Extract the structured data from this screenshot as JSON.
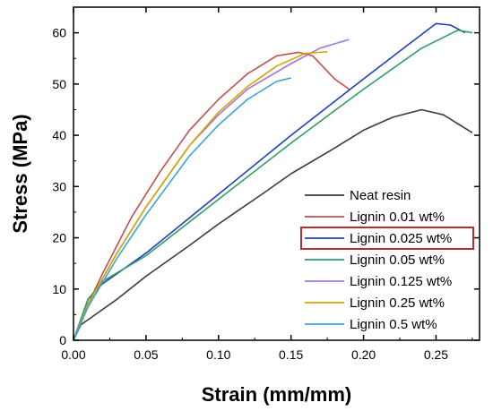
{
  "chart_data": {
    "type": "line",
    "xlabel": "Strain (mm/mm)",
    "ylabel": "Stress (MPa)",
    "xlim": [
      0,
      0.28
    ],
    "ylim": [
      0,
      65
    ],
    "x_ticks": [
      "0.00",
      "0.05",
      "0.10",
      "0.15",
      "0.20",
      "0.25"
    ],
    "y_ticks": [
      "0",
      "10",
      "20",
      "30",
      "40",
      "50",
      "60"
    ],
    "x_tick_values": [
      0,
      0.05,
      0.1,
      0.15,
      0.2,
      0.25
    ],
    "y_tick_values": [
      0,
      10,
      20,
      30,
      40,
      50,
      60
    ],
    "grid": false,
    "legend_position": "bottom-right",
    "highlighted_series": "Lignin 0.025 wt%",
    "highlight_color": "#b03030",
    "series": [
      {
        "name": "Neat resin",
        "color": "#3c3c3c",
        "points": [
          [
            0,
            0
          ],
          [
            0.005,
            3
          ],
          [
            0.015,
            5
          ],
          [
            0.03,
            8
          ],
          [
            0.05,
            12.5
          ],
          [
            0.08,
            18.5
          ],
          [
            0.1,
            22.7
          ],
          [
            0.13,
            28.5
          ],
          [
            0.15,
            32.5
          ],
          [
            0.18,
            37.5
          ],
          [
            0.2,
            41
          ],
          [
            0.22,
            43.5
          ],
          [
            0.24,
            45
          ],
          [
            0.255,
            44
          ],
          [
            0.275,
            40.5
          ]
        ]
      },
      {
        "name": "Lignin 0.01 wt%",
        "color": "#c0504d",
        "points": [
          [
            0,
            0
          ],
          [
            0.01,
            7
          ],
          [
            0.02,
            13
          ],
          [
            0.04,
            24
          ],
          [
            0.06,
            33
          ],
          [
            0.08,
            41
          ],
          [
            0.1,
            47
          ],
          [
            0.12,
            52
          ],
          [
            0.14,
            55.5
          ],
          [
            0.155,
            56.2
          ],
          [
            0.165,
            55.5
          ],
          [
            0.18,
            51
          ],
          [
            0.19,
            49
          ]
        ]
      },
      {
        "name": "Lignin 0.025 wt%",
        "color": "#1f3fbf",
        "points": [
          [
            0,
            0
          ],
          [
            0.01,
            8
          ],
          [
            0.02,
            11
          ],
          [
            0.05,
            17
          ],
          [
            0.1,
            28.5
          ],
          [
            0.15,
            40
          ],
          [
            0.2,
            51
          ],
          [
            0.23,
            57.5
          ],
          [
            0.25,
            61.8
          ],
          [
            0.26,
            61.5
          ],
          [
            0.27,
            60
          ]
        ]
      },
      {
        "name": "Lignin 0.05 wt%",
        "color": "#2e9e6a",
        "points": [
          [
            0,
            0
          ],
          [
            0.01,
            8
          ],
          [
            0.02,
            11.5
          ],
          [
            0.05,
            16.5
          ],
          [
            0.1,
            27.5
          ],
          [
            0.15,
            38.5
          ],
          [
            0.2,
            49
          ],
          [
            0.24,
            57
          ],
          [
            0.265,
            60.5
          ],
          [
            0.275,
            60
          ]
        ]
      },
      {
        "name": "Lignin 0.125 wt%",
        "color": "#a277d6",
        "points": [
          [
            0,
            0
          ],
          [
            0.01,
            7
          ],
          [
            0.03,
            17
          ],
          [
            0.05,
            26
          ],
          [
            0.08,
            38
          ],
          [
            0.1,
            44
          ],
          [
            0.12,
            49
          ],
          [
            0.15,
            54
          ],
          [
            0.17,
            57
          ],
          [
            0.19,
            58.7
          ]
        ]
      },
      {
        "name": "Lignin 0.25 wt%",
        "color": "#d9a400",
        "points": [
          [
            0,
            0
          ],
          [
            0.01,
            7
          ],
          [
            0.03,
            17
          ],
          [
            0.05,
            26
          ],
          [
            0.08,
            38
          ],
          [
            0.1,
            44.5
          ],
          [
            0.12,
            49.5
          ],
          [
            0.14,
            53.5
          ],
          [
            0.16,
            56
          ],
          [
            0.175,
            56.3
          ]
        ]
      },
      {
        "name": "Lignin 0.5 wt%",
        "color": "#3aa3d6",
        "points": [
          [
            0,
            0
          ],
          [
            0.01,
            6.5
          ],
          [
            0.03,
            16
          ],
          [
            0.05,
            24.5
          ],
          [
            0.08,
            36
          ],
          [
            0.1,
            42
          ],
          [
            0.12,
            47
          ],
          [
            0.14,
            50.5
          ],
          [
            0.15,
            51.2
          ]
        ]
      }
    ]
  }
}
